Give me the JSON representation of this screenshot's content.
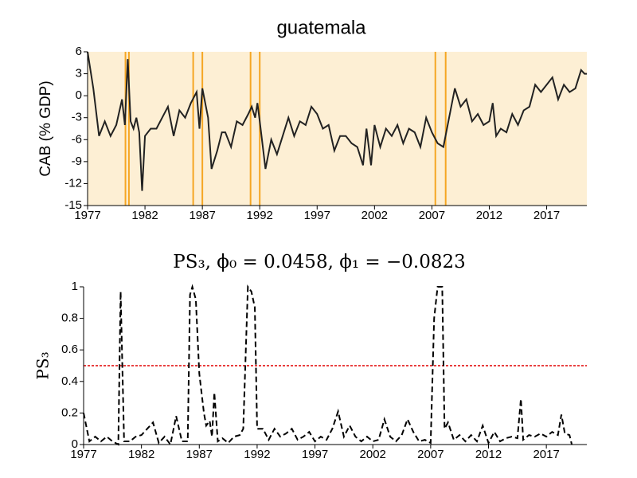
{
  "chart_data": [
    {
      "type": "line",
      "title": "guatemala",
      "ylabel": "CAB (% GDP)",
      "color": "#222222",
      "background": "#fdefd4",
      "regime_color": "#f5a623",
      "regime_lines": [
        1980.3,
        1980.6,
        1986.2,
        1987.0,
        1991.2,
        1992.0,
        2007.3,
        2008.2
      ],
      "xlim": [
        1977,
        2020.5
      ],
      "xticks": [
        1977,
        1982,
        1987,
        1992,
        1997,
        2002,
        2007,
        2012,
        2017
      ],
      "ylim": [
        -15,
        6
      ],
      "yticks": [
        -15,
        -12,
        -9,
        -6,
        -3,
        0,
        3,
        6
      ],
      "x": [
        1977,
        1977.5,
        1978,
        1978.5,
        1979,
        1979.5,
        1980,
        1980.25,
        1980.5,
        1980.75,
        1981,
        1981.25,
        1981.5,
        1981.75,
        1982,
        1982.5,
        1983,
        1983.5,
        1984,
        1984.5,
        1985,
        1985.5,
        1986,
        1986.5,
        1986.75,
        1987,
        1987.5,
        1987.8,
        1988.3,
        1988.7,
        1989,
        1989.5,
        1990,
        1990.5,
        1991,
        1991.3,
        1991.6,
        1991.8,
        1992,
        1992.5,
        1993,
        1993.5,
        1994,
        1994.5,
        1995,
        1995.5,
        1996,
        1996.5,
        1997,
        1997.5,
        1998,
        1998.5,
        1999,
        1999.5,
        2000,
        2000.5,
        2001,
        2001.3,
        2001.7,
        2002,
        2002.5,
        2003,
        2003.5,
        2004,
        2004.5,
        2005,
        2005.5,
        2006,
        2006.5,
        2007,
        2007.5,
        2008,
        2008.5,
        2009,
        2009.5,
        2010,
        2010.5,
        2011,
        2011.5,
        2012,
        2012.3,
        2012.6,
        2013,
        2013.5,
        2014,
        2014.5,
        2015,
        2015.5,
        2016,
        2016.5,
        2017,
        2017.5,
        2018,
        2018.5,
        2019,
        2019.5,
        2020,
        2020.3,
        2020.5
      ],
      "values": [
        6,
        1,
        -5.5,
        -3.5,
        -5.5,
        -4,
        -0.5,
        -4,
        5,
        -3.5,
        -4.5,
        -3,
        -5,
        -13,
        -5.5,
        -4.5,
        -4.5,
        -3,
        -1.5,
        -5.5,
        -2,
        -3,
        -1,
        0.5,
        -4.5,
        1,
        -3,
        -10,
        -7.5,
        -5,
        -5,
        -7,
        -3.5,
        -4,
        -2.5,
        -1.5,
        -3,
        -1,
        -3.5,
        -10,
        -6,
        -8,
        -5.5,
        -3,
        -5.5,
        -3.5,
        -4,
        -1.5,
        -2.5,
        -4.5,
        -4,
        -7.5,
        -5.5,
        -5.5,
        -6.5,
        -7,
        -9.5,
        -4.5,
        -9.5,
        -4,
        -7,
        -4.5,
        -5.5,
        -4,
        -6.5,
        -4.5,
        -5,
        -7,
        -3,
        -5,
        -6.5,
        -7,
        -3,
        1,
        -1.5,
        -0.5,
        -3.5,
        -2.5,
        -4,
        -3.5,
        -1,
        -5.5,
        -4.5,
        -5,
        -2.5,
        -4,
        -2,
        -1.5,
        1.5,
        0.5,
        1.5,
        2.5,
        -0.5,
        1.5,
        0.5,
        1,
        3.5,
        3,
        3
      ]
    },
    {
      "type": "line",
      "title": "PS₃, ϕ₀ = 0.0458, ϕ₁ = −0.0823",
      "ylabel": "PS₃",
      "color": "#000000",
      "dashed": true,
      "threshold": 0.5,
      "threshold_color": "#e00000",
      "xlim": [
        1977,
        2020.5
      ],
      "xticks": [
        1977,
        1982,
        1987,
        1992,
        1997,
        2002,
        2007,
        2012,
        2017
      ],
      "ylim": [
        0,
        1
      ],
      "yticks": [
        0,
        0.2,
        0.4,
        0.6,
        0.8,
        1
      ],
      "x": [
        1977,
        1977.5,
        1978,
        1978.5,
        1979,
        1979.5,
        1980,
        1980.2,
        1980.5,
        1981,
        1981.5,
        1982,
        1982.5,
        1983,
        1983.5,
        1984,
        1984.5,
        1985,
        1985.5,
        1986,
        1986.2,
        1986.4,
        1986.7,
        1987,
        1987.4,
        1987.6,
        1987.9,
        1988.1,
        1988.3,
        1988.6,
        1989,
        1989.5,
        1990,
        1990.5,
        1990.8,
        1991.2,
        1991.5,
        1991.8,
        1992,
        1992.5,
        1993,
        1993.5,
        1994,
        1994.5,
        1995,
        1995.5,
        1996,
        1996.5,
        1997,
        1997.5,
        1998,
        1998.5,
        1999,
        1999.5,
        2000,
        2000.5,
        2001,
        2001.5,
        2002,
        2002.5,
        2003,
        2003.5,
        2004,
        2004.5,
        2005,
        2005.5,
        2006,
        2006.5,
        2007,
        2007.3,
        2007.6,
        2008,
        2008.2,
        2008.5,
        2009,
        2009.5,
        2010,
        2010.5,
        2011,
        2011.5,
        2012,
        2012.5,
        2013,
        2013.5,
        2014,
        2014.5,
        2014.8,
        2015,
        2015.5,
        2016,
        2016.5,
        2017,
        2017.5,
        2018,
        2018.3,
        2018.6,
        2019,
        2019.2
      ],
      "values": [
        0.2,
        0.02,
        0.05,
        0.02,
        0.05,
        0.02,
        0.0,
        0.97,
        0.02,
        0.02,
        0.05,
        0.06,
        0.1,
        0.14,
        0.01,
        0.05,
        0.0,
        0.18,
        0.02,
        0.02,
        0.95,
        1.0,
        0.92,
        0.45,
        0.2,
        0.12,
        0.15,
        0.05,
        0.33,
        0.02,
        0.04,
        0.01,
        0.05,
        0.06,
        0.1,
        1.0,
        0.97,
        0.87,
        0.1,
        0.1,
        0.03,
        0.1,
        0.05,
        0.07,
        0.1,
        0.03,
        0.05,
        0.08,
        0.02,
        0.05,
        0.03,
        0.1,
        0.21,
        0.05,
        0.12,
        0.05,
        0.02,
        0.05,
        0.02,
        0.03,
        0.16,
        0.05,
        0.02,
        0.06,
        0.16,
        0.08,
        0.02,
        0.03,
        0.01,
        0.8,
        1.0,
        1.0,
        0.1,
        0.14,
        0.03,
        0.06,
        0.02,
        0.06,
        0.02,
        0.12,
        0.01,
        0.08,
        0.02,
        0.04,
        0.05,
        0.04,
        0.29,
        0.03,
        0.06,
        0.05,
        0.07,
        0.05,
        0.08,
        0.06,
        0.19,
        0.07,
        0.06,
        0.0
      ]
    }
  ]
}
